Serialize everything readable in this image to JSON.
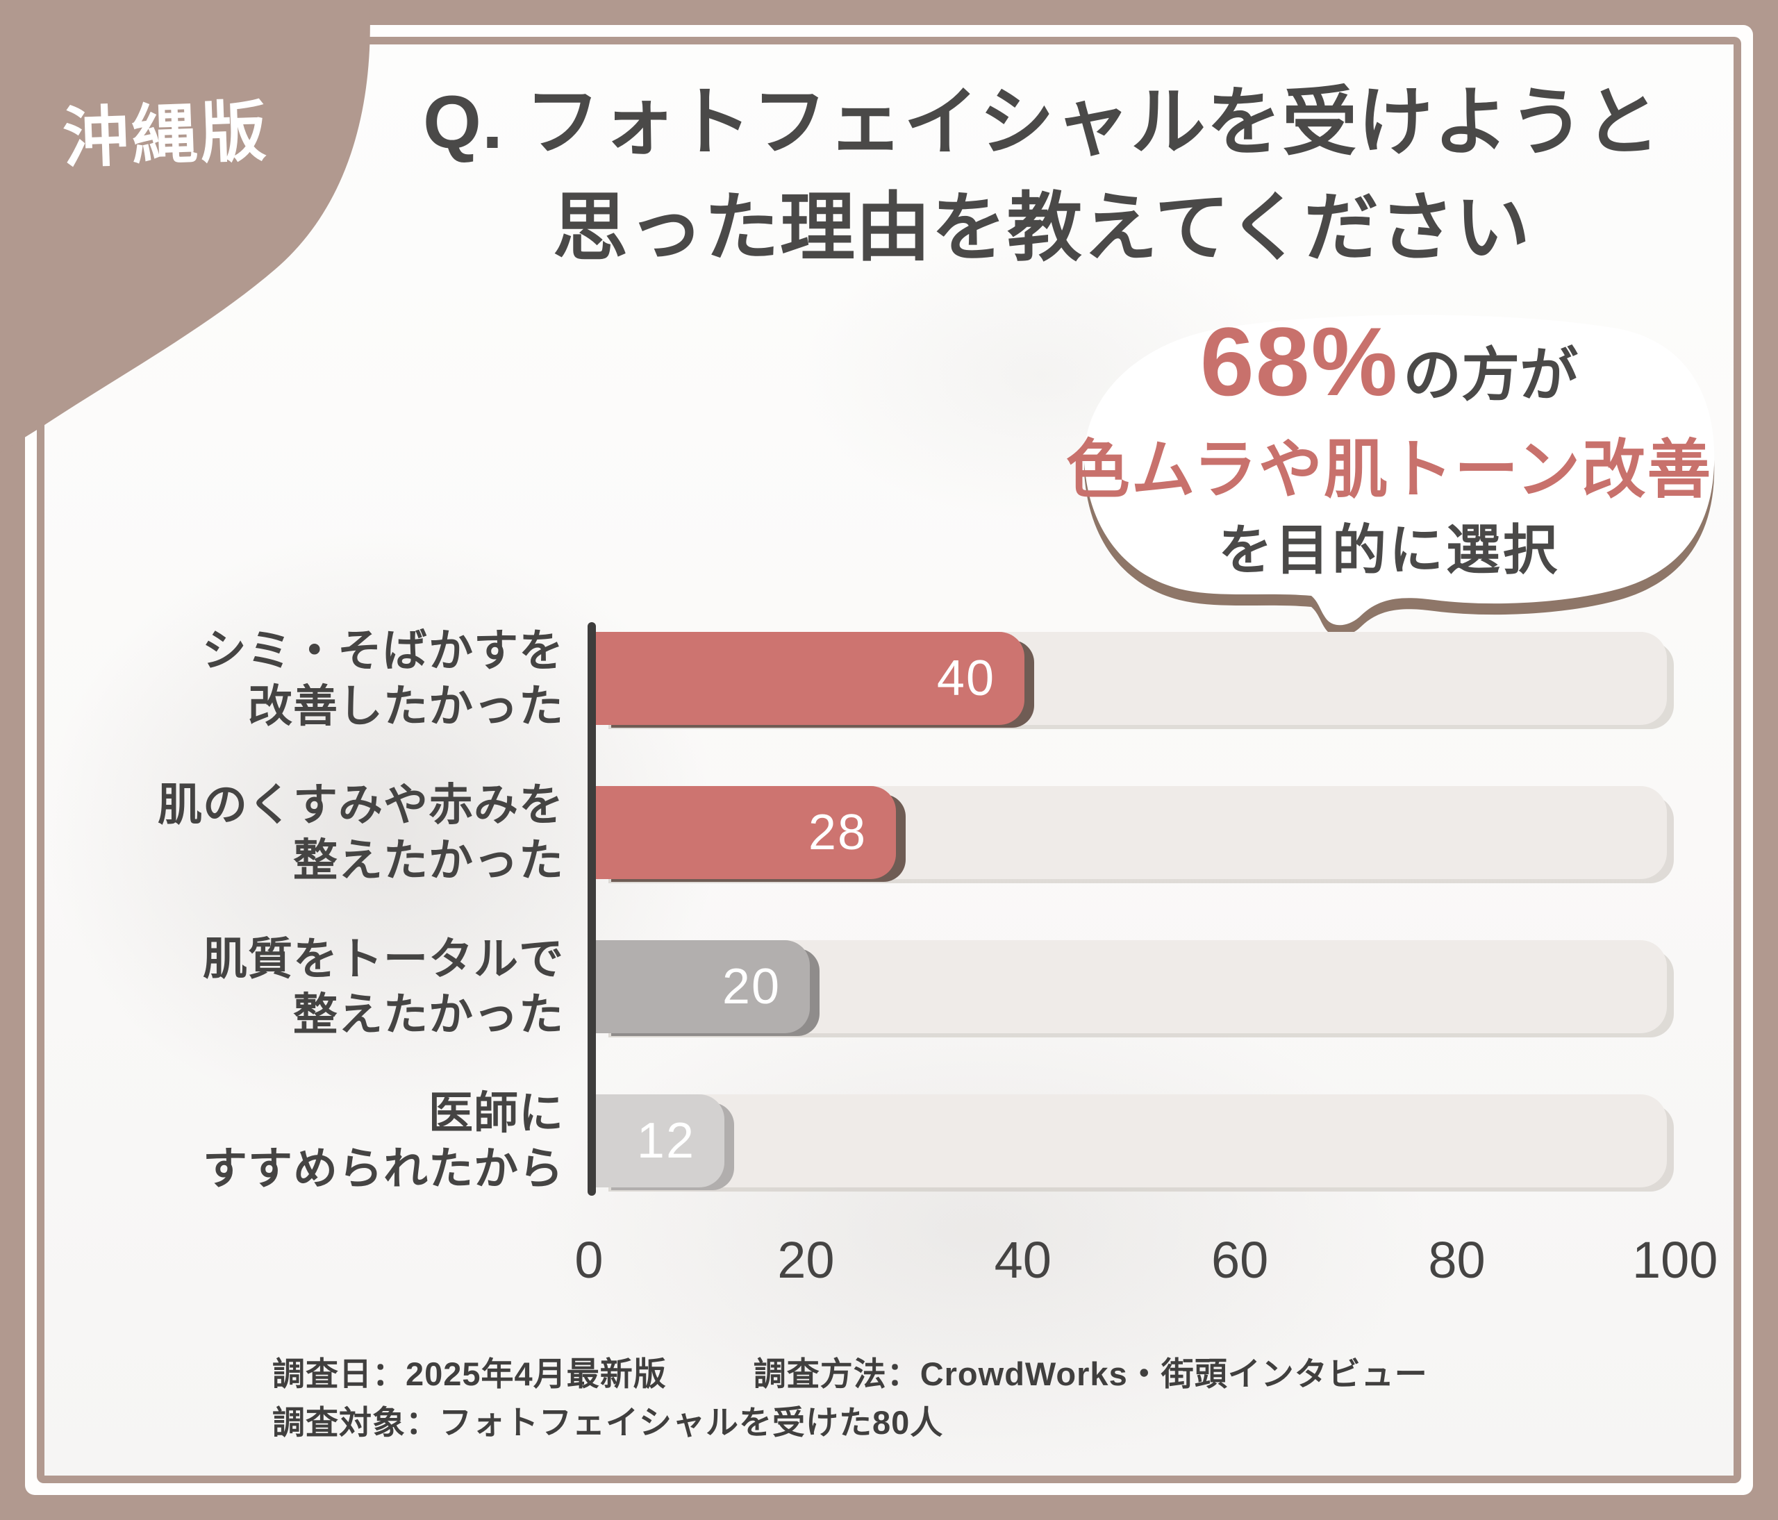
{
  "badge": {
    "label": "沖縄版"
  },
  "title": {
    "line1": "Q. フォトフェイシャルを受けようと",
    "line2": "思った理由を教えてください"
  },
  "bubble": {
    "stat": "68%",
    "stat_suffix": "の方が",
    "highlight": "色ムラや肌トーン改善",
    "purpose": "を目的に選択",
    "accent_color": "#c8716c"
  },
  "chart_data": {
    "type": "bar",
    "orientation": "horizontal",
    "categories": [
      {
        "lines": [
          "シミ・そばかすを",
          "改善したかった"
        ]
      },
      {
        "lines": [
          "肌のくすみや赤みを",
          "整えたかった"
        ]
      },
      {
        "lines": [
          "肌質をトータルで",
          "整えたかった"
        ]
      },
      {
        "lines": [
          "医師に",
          "すすめられたから"
        ]
      }
    ],
    "values": [
      40,
      28,
      20,
      12
    ],
    "bar_colors": [
      "#cd7470",
      "#cd7470",
      "#b2afae",
      "#d3d1d0"
    ],
    "bar_shadow_colors": [
      "#6f5c54",
      "#6f5c54",
      "#8f8c8b",
      "#b1aead"
    ],
    "track_color": "#efebe8",
    "xticks": [
      0,
      20,
      40,
      60,
      80,
      100
    ],
    "xlim": [
      0,
      100
    ],
    "xlabel": "",
    "ylabel": "",
    "grid": false,
    "legend": false
  },
  "footer": {
    "survey_date": "調査日：2025年4月最新版",
    "survey_method": "調査方法：CrowdWorks・街頭インタビュー",
    "survey_target": "調査対象：フォトフェイシャルを受けた80人"
  },
  "colors": {
    "frame": "#b1998f",
    "bubble_shadow": "#8e7668",
    "text_dark": "#4a4948",
    "bar_value_text": "#ffffff"
  }
}
